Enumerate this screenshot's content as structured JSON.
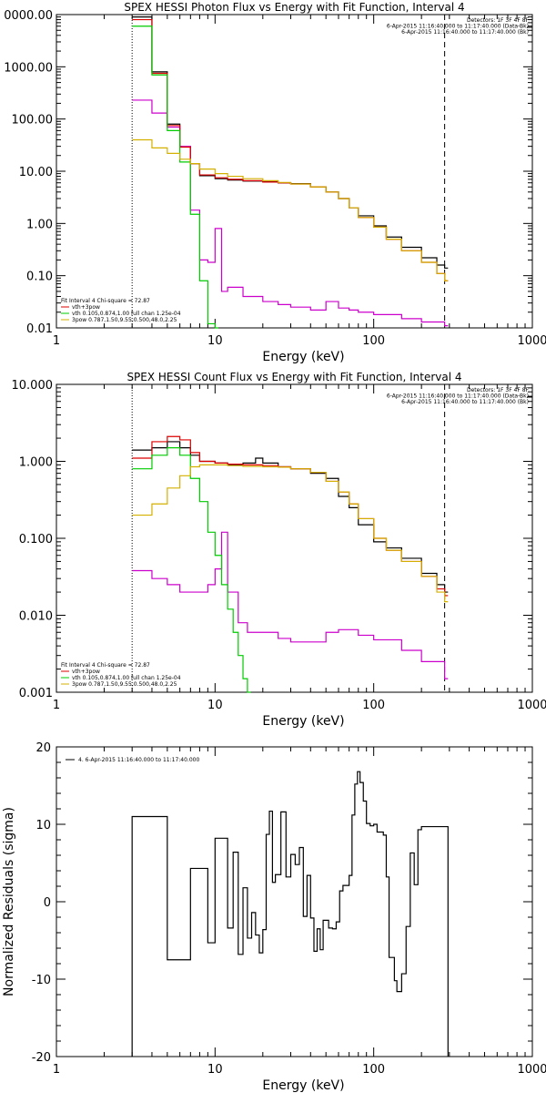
{
  "chart_data": [
    {
      "type": "line",
      "title": "SPEX HESSI Photon Flux vs Energy with Fit Function, Interval 4",
      "xlabel": "Energy (keV)",
      "ylabel": "",
      "xscale": "log",
      "yscale": "log",
      "xlim": [
        1,
        1000
      ],
      "ylim": [
        0.01,
        10000
      ],
      "xticks": [
        "1",
        "10",
        "100",
        "1000"
      ],
      "yticks": [
        "0.01",
        "0.10",
        "1.00",
        "10.00",
        "100.00",
        "1000.00",
        "0000.00"
      ],
      "legend_top": [
        "Detectors: 1F 3F 4F 8F",
        "6-Apr-2015 11:16:40.000 to 11:17:40.000 (Data-Bk)",
        "6-Apr-2015 11:16:40.000 to 11:17:40.000 (Bk)"
      ],
      "legend_bottom": [
        "Fit Interval 4   Chi-square = 72.87",
        "vth+3pow",
        "vth 0.105,0.874,1.00  full chan  1.25e-04",
        "3pow 0.787,1.50,9.55,0.500,48.0,2.25"
      ],
      "series": [
        {
          "name": "6-Apr-2015 11:16:40.000 to 11:17:40.000 (Data-Bk)",
          "color": "#000000",
          "x": [
            3,
            4,
            5,
            6,
            7,
            8,
            10,
            12,
            15,
            20,
            25,
            30,
            40,
            50,
            60,
            70,
            80,
            100,
            120,
            150,
            200,
            250,
            280
          ],
          "y": [
            9000,
            800,
            80,
            30,
            14,
            8.2,
            7.2,
            6.8,
            6.5,
            6.3,
            6.0,
            5.8,
            5.0,
            4.0,
            3.0,
            2.0,
            1.4,
            0.9,
            0.55,
            0.35,
            0.22,
            0.16,
            0.14
          ]
        },
        {
          "name": "6-Apr-2015 11:16:40.000 to 11:17:40.000 (Bk)",
          "color": "#cc00cc",
          "x": [
            3,
            4,
            5,
            6,
            7,
            8,
            9,
            10,
            11,
            12,
            15,
            20,
            25,
            30,
            40,
            50,
            60,
            70,
            80,
            100,
            150,
            200,
            280
          ],
          "y": [
            230,
            130,
            70,
            30,
            1.8,
            0.2,
            0.18,
            0.8,
            0.05,
            0.06,
            0.04,
            0.032,
            0.028,
            0.025,
            0.022,
            0.032,
            0.024,
            0.022,
            0.02,
            0.018,
            0.015,
            0.013,
            0.011
          ]
        },
        {
          "name": "vth+3pow",
          "color": "#dd0000",
          "x": [
            3,
            4,
            5,
            6,
            7,
            8,
            10,
            12,
            15,
            20,
            25,
            30,
            40,
            50,
            60,
            70,
            80,
            100,
            120,
            150,
            200,
            250,
            280
          ],
          "y": [
            8000,
            750,
            75,
            29,
            14,
            8.5,
            7.5,
            7.0,
            6.6,
            6.2,
            6.0,
            5.7,
            5.0,
            4.0,
            3.0,
            2.0,
            1.3,
            0.85,
            0.5,
            0.3,
            0.18,
            0.11,
            0.08
          ]
        },
        {
          "name": "vth 0.105,0.874,1.00  full chan  1.25e-04",
          "color": "#00cc00",
          "x": [
            3,
            4,
            5,
            6,
            7,
            8,
            9,
            10
          ],
          "y": [
            6000,
            700,
            60,
            15,
            1.5,
            0.08,
            0.012,
            0.01
          ]
        },
        {
          "name": "3pow 0.787,1.50,9.55,0.500,48.0,2.25",
          "color": "#d4b000",
          "x": [
            3,
            4,
            5,
            6,
            7,
            8,
            10,
            12,
            15,
            20,
            25,
            30,
            40,
            50,
            60,
            70,
            80,
            100,
            120,
            150,
            200,
            250,
            280
          ],
          "y": [
            40,
            28,
            22,
            17,
            14,
            11,
            9,
            8,
            7.2,
            6.6,
            6.1,
            5.7,
            5.0,
            4.0,
            3.0,
            2.0,
            1.3,
            0.85,
            0.5,
            0.3,
            0.18,
            0.11,
            0.08
          ]
        }
      ]
    },
    {
      "type": "line",
      "title": "SPEX HESSI Count Flux vs Energy with Fit Function, Interval 4",
      "xlabel": "Energy (keV)",
      "ylabel": "",
      "xscale": "log",
      "yscale": "log",
      "xlim": [
        1,
        1000
      ],
      "ylim": [
        0.001,
        10
      ],
      "xticks": [
        "1",
        "10",
        "100",
        "1000"
      ],
      "yticks": [
        "0.001",
        "0.010",
        "0.100",
        "1.000",
        "10.000"
      ],
      "legend_top": [
        "Detectors: 1F 3F 4F 8F",
        "6-Apr-2015 11:16:40.000 to 11:17:40.000 (Data-Bk)",
        "6-Apr-2015 11:16:40.000 to 11:17:40.000 (Bk)"
      ],
      "legend_bottom": [
        "Fit Interval 4   Chi-square = 72.87",
        "vth+3pow",
        "vth 0.105,0.874,1.00  full chan  1.25e-04",
        "3pow 0.787,1.50,9.55,0.500,48.0,2.25"
      ],
      "series": [
        {
          "name": "6-Apr-2015 11:16:40.000 to 11:17:40.000 (Data-Bk)",
          "color": "#000000",
          "x": [
            3,
            4,
            5,
            6,
            7,
            8,
            10,
            12,
            15,
            18,
            20,
            25,
            30,
            40,
            50,
            60,
            70,
            80,
            100,
            120,
            150,
            200,
            250,
            280
          ],
          "y": [
            1.4,
            1.5,
            1.8,
            1.5,
            1.2,
            1.0,
            0.95,
            0.9,
            0.95,
            1.1,
            0.95,
            0.85,
            0.8,
            0.7,
            0.6,
            0.35,
            0.25,
            0.15,
            0.09,
            0.075,
            0.055,
            0.035,
            0.025,
            0.02
          ]
        },
        {
          "name": "6-Apr-2015 11:16:40.000 to 11:17:40.000 (Bk)",
          "color": "#cc00cc",
          "x": [
            3,
            4,
            5,
            6,
            7,
            8,
            9,
            10,
            11,
            12,
            14,
            16,
            18,
            20,
            25,
            30,
            40,
            50,
            60,
            80,
            100,
            150,
            200,
            280
          ],
          "y": [
            0.038,
            0.03,
            0.025,
            0.02,
            0.02,
            0.02,
            0.025,
            0.04,
            0.12,
            0.02,
            0.008,
            0.006,
            0.006,
            0.006,
            0.005,
            0.0045,
            0.0045,
            0.006,
            0.0065,
            0.0055,
            0.0048,
            0.0035,
            0.0025,
            0.0015
          ]
        },
        {
          "name": "vth+3pow",
          "color": "#dd0000",
          "x": [
            3,
            4,
            5,
            6,
            7,
            8,
            10,
            12,
            15,
            20,
            25,
            30,
            40,
            50,
            60,
            70,
            80,
            100,
            120,
            150,
            200,
            250,
            280
          ],
          "y": [
            1.1,
            1.8,
            2.1,
            1.9,
            1.3,
            1.0,
            0.95,
            0.92,
            0.9,
            0.88,
            0.85,
            0.8,
            0.72,
            0.55,
            0.4,
            0.28,
            0.18,
            0.1,
            0.07,
            0.05,
            0.032,
            0.022,
            0.018
          ]
        },
        {
          "name": "vth 0.105,0.874,1.00  full chan  1.25e-04",
          "color": "#00cc00",
          "x": [
            3,
            4,
            5,
            6,
            7,
            8,
            9,
            10,
            11,
            12,
            13,
            14,
            15,
            16
          ],
          "y": [
            0.8,
            1.2,
            1.5,
            1.2,
            0.6,
            0.3,
            0.12,
            0.06,
            0.025,
            0.012,
            0.006,
            0.003,
            0.0015,
            0.001
          ]
        },
        {
          "name": "3pow 0.787,1.50,9.55,0.500,48.0,2.25",
          "color": "#d4b000",
          "x": [
            3,
            4,
            5,
            6,
            7,
            8,
            10,
            12,
            15,
            20,
            25,
            30,
            40,
            50,
            60,
            70,
            80,
            100,
            120,
            150,
            200,
            250,
            280
          ],
          "y": [
            0.2,
            0.28,
            0.45,
            0.65,
            0.85,
            0.9,
            0.9,
            0.88,
            0.86,
            0.85,
            0.84,
            0.8,
            0.72,
            0.55,
            0.4,
            0.28,
            0.18,
            0.1,
            0.07,
            0.05,
            0.032,
            0.02,
            0.015
          ]
        }
      ]
    },
    {
      "type": "line",
      "title": "",
      "xlabel": "Energy (keV)",
      "ylabel": "Normalized Residuals (sigma)",
      "xscale": "log",
      "yscale": "linear",
      "xlim": [
        1,
        1000
      ],
      "ylim": [
        -20,
        20
      ],
      "xticks": [
        "1",
        "10",
        "100",
        "1000"
      ],
      "yticks": [
        "-20",
        "-10",
        "0",
        "10",
        "20"
      ],
      "legend": [
        "4.  6-Apr-2015 11:16:40.000 to 11:17:40.000"
      ],
      "series": [
        {
          "name": "4.  6-Apr-2015 11:16:40.000 to 11:17:40.000",
          "color": "#000000",
          "x": [
            3,
            4,
            5,
            6,
            7,
            8,
            9,
            10,
            11,
            12,
            13,
            14,
            15,
            16,
            17,
            18,
            19,
            20,
            21,
            22,
            23,
            24,
            26,
            28,
            30,
            32,
            34,
            36,
            38,
            40,
            42,
            44,
            46,
            48,
            50,
            52,
            55,
            58,
            61,
            64,
            67,
            70,
            73,
            76,
            79,
            82,
            86,
            90,
            95,
            100,
            105,
            110,
            115,
            120,
            125,
            130,
            135,
            140,
            145,
            150,
            160,
            170,
            180,
            190,
            200,
            210,
            220,
            230,
            240,
            250,
            260,
            270,
            280
          ],
          "y": [
            11,
            11,
            -7.5,
            -7.5,
            4.3,
            4.3,
            -5.3,
            8.2,
            8.2,
            -3.4,
            6.4,
            -6.8,
            1.8,
            -4.7,
            -1.4,
            -4.3,
            -6.6,
            -3.6,
            8.7,
            11.7,
            2.5,
            3.5,
            11.6,
            3.2,
            6.1,
            4.8,
            7.0,
            -1.9,
            3.4,
            -2.1,
            -6.4,
            -3.5,
            -6.2,
            -2.4,
            -2.4,
            -3.4,
            -3.5,
            -2.6,
            1.4,
            2.1,
            2.1,
            3.4,
            11.2,
            15.2,
            16.8,
            15.4,
            13.0,
            10.1,
            9.8,
            10.0,
            9.0,
            9.0,
            8.6,
            3.2,
            -7.2,
            -7.2,
            -10.2,
            -11.6,
            -11.6,
            -9.3,
            -3.2,
            6.3,
            2.2,
            9.3,
            9.7,
            9.7,
            9.7,
            9.7,
            9.7,
            9.7,
            9.7,
            9.7,
            9.7
          ]
        }
      ]
    }
  ]
}
